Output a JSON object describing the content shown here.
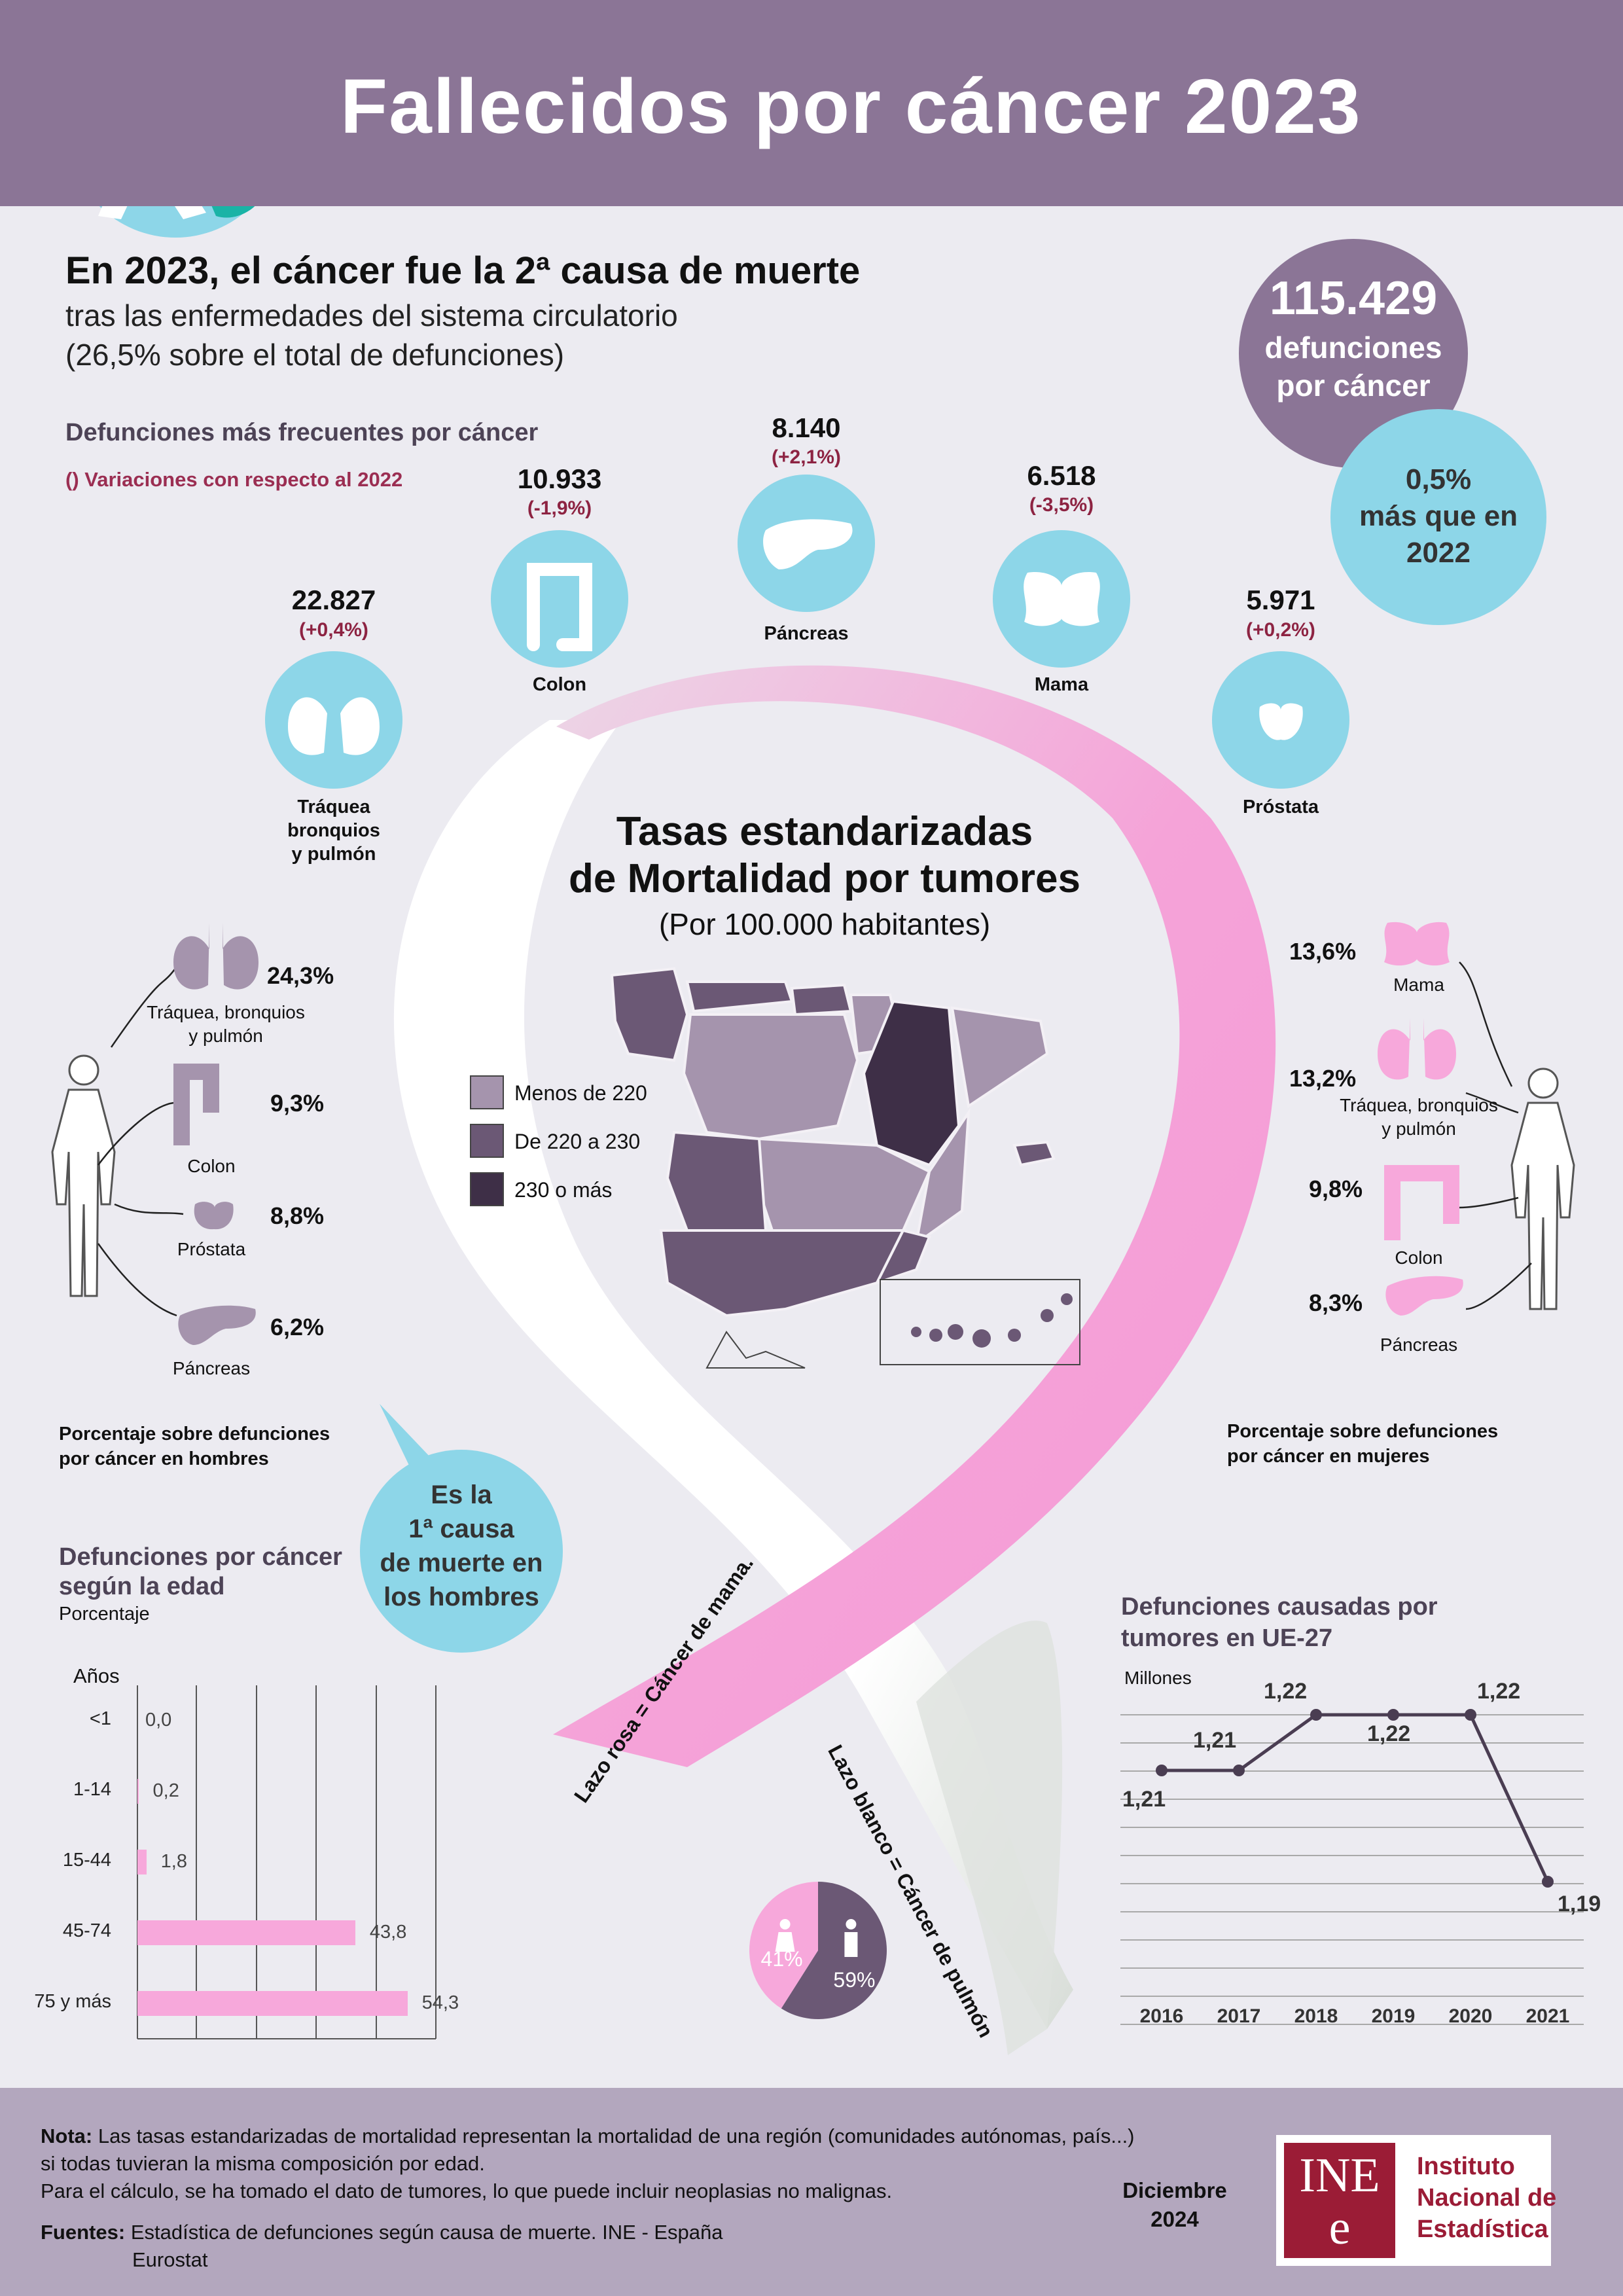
{
  "header": {
    "title": "Fallecidos por cáncer 2023"
  },
  "intro": {
    "headline": "En 2023, el cáncer fue la 2ª causa de muerte",
    "line1": "tras las enfermedades del sistema circulatorio",
    "line2": "(26,5% sobre el total de defunciones)"
  },
  "total_bubble": {
    "number": "115.429",
    "line1": "defunciones",
    "line2": "por cáncer"
  },
  "change_bubble": {
    "line1": "0,5%",
    "line2": "más que en",
    "line3": "2022"
  },
  "frequent": {
    "title": "Defunciones más frecuentes por cáncer",
    "note": "() Variaciones con respecto al 2022",
    "items": [
      {
        "value": "22.827",
        "change": "(+0,4%)",
        "label": "Tráquea bronquios y pulmón",
        "label_lines": [
          "Tráquea",
          "bronquios",
          "y pulmón"
        ],
        "icon": "lungs-icon"
      },
      {
        "value": "10.933",
        "change": "(-1,9%)",
        "label": "Colon",
        "icon": "colon-icon"
      },
      {
        "value": "8.140",
        "change": "(+2,1%)",
        "label": "Páncreas",
        "icon": "pancreas-icon"
      },
      {
        "value": "6.518",
        "change": "(-3,5%)",
        "label": "Mama",
        "icon": "breast-icon"
      },
      {
        "value": "5.971",
        "change": "(+0,2%)",
        "label": "Próstata",
        "icon": "prostate-icon"
      }
    ]
  },
  "map": {
    "title_line1": "Tasas estandarizadas",
    "title_line2": "de Mortalidad por tumores",
    "subtitle": "(Por 100.000 habitantes)",
    "legend": [
      {
        "label": "Menos de 220",
        "color": "#a594ad"
      },
      {
        "label": "De 220 a 230",
        "color": "#6b5875"
      },
      {
        "label": "230 o más",
        "color": "#3e2f47"
      }
    ]
  },
  "men": {
    "items": [
      {
        "pct": "24,3%",
        "label_lines": [
          "Tráquea, bronquios",
          "y pulmón"
        ],
        "icon": "lungs-icon"
      },
      {
        "pct": "9,3%",
        "label_lines": [
          "Colon"
        ],
        "icon": "colon-icon"
      },
      {
        "pct": "8,8%",
        "label_lines": [
          "Próstata"
        ],
        "icon": "prostate-icon"
      },
      {
        "pct": "6,2%",
        "label_lines": [
          "Páncreas"
        ],
        "icon": "pancreas-icon"
      }
    ],
    "caption_line1": "Porcentaje sobre defunciones",
    "caption_line2": "por cáncer en hombres"
  },
  "women": {
    "items": [
      {
        "pct": "13,6%",
        "label_lines": [
          "Mama"
        ],
        "icon": "breast-icon"
      },
      {
        "pct": "13,2%",
        "label_lines": [
          "Tráquea, bronquios",
          "y pulmón"
        ],
        "icon": "lungs-icon"
      },
      {
        "pct": "9,8%",
        "label_lines": [
          "Colon"
        ],
        "icon": "colon-icon"
      },
      {
        "pct": "8,3%",
        "label_lines": [
          "Páncreas"
        ],
        "icon": "pancreas-icon"
      }
    ],
    "caption_line1": "Porcentaje sobre defunciones",
    "caption_line2": "por cáncer en mujeres"
  },
  "speech_bubble": {
    "lines": [
      "Es la",
      "1ª causa",
      "de muerte en",
      "los hombres"
    ]
  },
  "ribbon": {
    "pink_label": "Lazo rosa = Cáncer de mama.",
    "white_label": "Lazo blanco = Cáncer de pulmón"
  },
  "chart_data": [
    {
      "type": "bar",
      "title_line1": "Defunciones por cáncer",
      "title_line2": "según la edad",
      "subtitle": "Porcentaje",
      "ylabel": "Años",
      "categories": [
        "<1",
        "1-14",
        "15-44",
        "45-74",
        "75 y más"
      ],
      "values": [
        0.0,
        0.2,
        1.8,
        43.8,
        54.3
      ],
      "value_labels": [
        "0,0",
        "0,2",
        "1,8",
        "43,8",
        "54,3"
      ],
      "xlim": [
        0,
        60
      ],
      "orientation": "horizontal",
      "bar_color": "#f7a8db",
      "grid": true
    },
    {
      "type": "line",
      "title_line1": "Defunciones causadas por",
      "title_line2": "tumores en UE-27",
      "ylabel": "Millones",
      "x": [
        "2016",
        "2017",
        "2018",
        "2019",
        "2020",
        "2021"
      ],
      "values": [
        1.21,
        1.21,
        1.22,
        1.22,
        1.22,
        1.19
      ],
      "value_labels": [
        "1,21",
        "1,21",
        "1,22",
        "1,22",
        "1,22",
        "1,19"
      ],
      "ylim": [
        1.17,
        1.23
      ],
      "line_color": "#4a3d52",
      "grid": true
    },
    {
      "type": "pie",
      "labels": [
        "Mujeres",
        "Hombres"
      ],
      "values": [
        41,
        59
      ],
      "value_labels": [
        "41%",
        "59%"
      ],
      "colors": [
        "#f7a8db",
        "#6b5875"
      ]
    }
  ],
  "footer": {
    "note_label": "Nota:",
    "note_text": "Las tasas estandarizadas de mortalidad representan la mortalidad de una región (comunidades autónomas, país...)",
    "note_line2": "si todas tuvieran la misma composición por edad.",
    "note_line3": "Para el cálculo, se ha tomado el dato de tumores, lo que puede incluir neoplasias no malignas.",
    "sources_label": "Fuentes:",
    "source1": "Estadística de defunciones según causa de muerte. INE - España",
    "source2": "Eurostat",
    "date_line1": "Diciembre",
    "date_line2": "2024",
    "logo_top": "INE",
    "logo_bottom": "e",
    "org_line1": "Instituto",
    "org_line2": "Nacional de",
    "org_line3": "Estadística"
  }
}
